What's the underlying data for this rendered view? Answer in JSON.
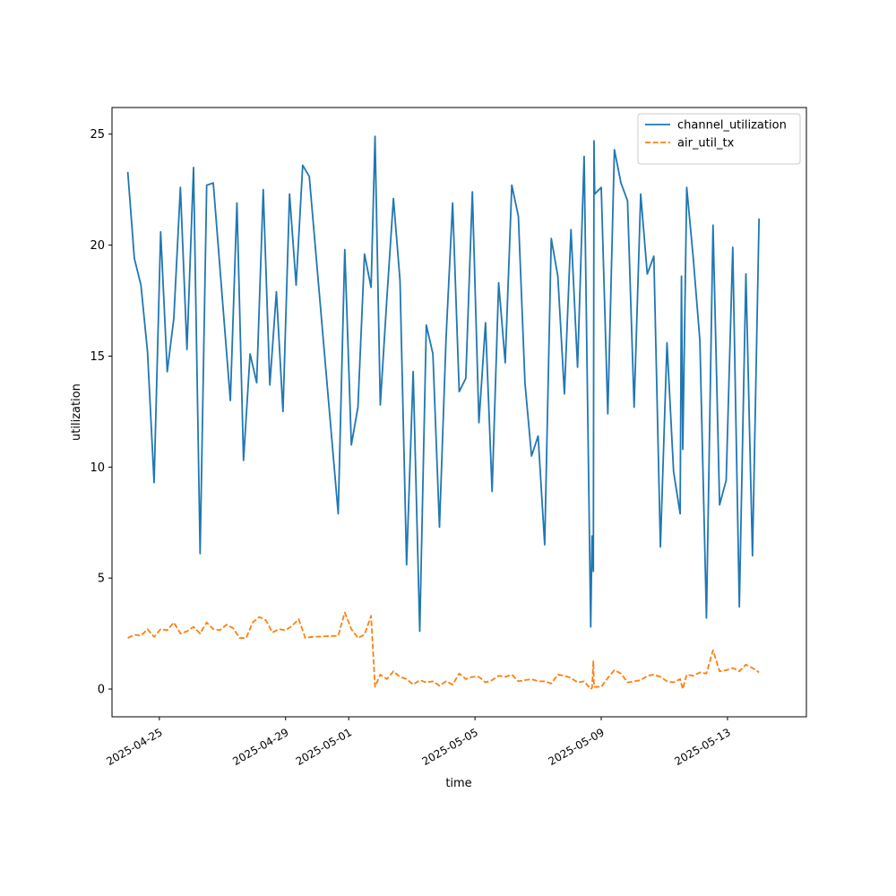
{
  "chart_data": {
    "type": "line",
    "title": "",
    "xlabel": "time",
    "ylabel": "utilization",
    "x_range": [
      "2025-04-23T12:00",
      "2025-05-15T12:00"
    ],
    "ylim": [
      -1.25,
      26.2
    ],
    "grid": false,
    "legend_position": "upper right",
    "x_ticks": [
      "2025-04-25",
      "2025-04-29",
      "2025-05-01",
      "2025-05-05",
      "2025-05-09",
      "2025-05-13"
    ],
    "y_ticks": [
      0,
      5,
      10,
      15,
      20,
      25
    ],
    "series": [
      {
        "name": "channel_utilization",
        "color": "#1f77b4",
        "dash": "solid",
        "points": [
          [
            "2025-04-24T00:00",
            23.3
          ],
          [
            "2025-04-24T05:00",
            19.4
          ],
          [
            "2025-04-24T10:00",
            18.2
          ],
          [
            "2025-04-24T15:00",
            15.2
          ],
          [
            "2025-04-24T20:00",
            9.3
          ],
          [
            "2025-04-25T01:00",
            20.6
          ],
          [
            "2025-04-25T06:00",
            14.3
          ],
          [
            "2025-04-25T11:00",
            16.7
          ],
          [
            "2025-04-25T16:00",
            22.6
          ],
          [
            "2025-04-25T21:00",
            15.3
          ],
          [
            "2025-04-26T02:00",
            23.5
          ],
          [
            "2025-04-26T07:00",
            6.1
          ],
          [
            "2025-04-26T12:00",
            22.7
          ],
          [
            "2025-04-26T17:00",
            22.8
          ],
          [
            "2025-04-27T06:00",
            13.0
          ],
          [
            "2025-04-27T11:00",
            21.9
          ],
          [
            "2025-04-27T16:00",
            10.3
          ],
          [
            "2025-04-27T21:00",
            15.1
          ],
          [
            "2025-04-28T02:00",
            13.8
          ],
          [
            "2025-04-28T07:00",
            22.5
          ],
          [
            "2025-04-28T12:00",
            13.7
          ],
          [
            "2025-04-28T17:00",
            17.9
          ],
          [
            "2025-04-28T22:00",
            12.5
          ],
          [
            "2025-04-29T03:00",
            22.3
          ],
          [
            "2025-04-29T08:00",
            18.2
          ],
          [
            "2025-04-29T13:00",
            23.6
          ],
          [
            "2025-04-29T18:00",
            23.1
          ],
          [
            "2025-04-30T16:00",
            7.9
          ],
          [
            "2025-04-30T21:00",
            19.8
          ],
          [
            "2025-05-01T02:00",
            11.0
          ],
          [
            "2025-05-01T07:00",
            12.7
          ],
          [
            "2025-05-01T12:00",
            19.6
          ],
          [
            "2025-05-01T17:00",
            18.1
          ],
          [
            "2025-05-01T20:00",
            24.9
          ],
          [
            "2025-05-02T00:00",
            12.8
          ],
          [
            "2025-05-02T05:00",
            17.6
          ],
          [
            "2025-05-02T10:00",
            22.1
          ],
          [
            "2025-05-02T15:00",
            18.4
          ],
          [
            "2025-05-02T20:00",
            5.6
          ],
          [
            "2025-05-03T01:00",
            14.3
          ],
          [
            "2025-05-03T06:00",
            2.6
          ],
          [
            "2025-05-03T11:00",
            16.4
          ],
          [
            "2025-05-03T16:00",
            15.1
          ],
          [
            "2025-05-03T21:00",
            7.3
          ],
          [
            "2025-05-04T02:00",
            15.8
          ],
          [
            "2025-05-04T07:00",
            21.9
          ],
          [
            "2025-05-04T12:00",
            13.4
          ],
          [
            "2025-05-04T17:00",
            14.0
          ],
          [
            "2025-05-04T22:00",
            22.4
          ],
          [
            "2025-05-05T03:00",
            12.0
          ],
          [
            "2025-05-05T08:00",
            16.5
          ],
          [
            "2025-05-05T13:00",
            8.9
          ],
          [
            "2025-05-05T18:00",
            18.3
          ],
          [
            "2025-05-05T23:00",
            14.7
          ],
          [
            "2025-05-06T04:00",
            22.7
          ],
          [
            "2025-05-06T09:00",
            21.3
          ],
          [
            "2025-05-06T14:00",
            13.8
          ],
          [
            "2025-05-06T19:00",
            10.5
          ],
          [
            "2025-05-07T00:00",
            11.4
          ],
          [
            "2025-05-07T05:00",
            6.5
          ],
          [
            "2025-05-07T10:00",
            20.3
          ],
          [
            "2025-05-07T15:00",
            18.6
          ],
          [
            "2025-05-07T20:00",
            13.3
          ],
          [
            "2025-05-08T01:00",
            20.7
          ],
          [
            "2025-05-08T06:00",
            14.5
          ],
          [
            "2025-05-08T11:00",
            24.0
          ],
          [
            "2025-05-08T16:00",
            2.8
          ],
          [
            "2025-05-08T17:00",
            6.9
          ],
          [
            "2025-05-08T18:00",
            5.3
          ],
          [
            "2025-05-08T18:30",
            24.7
          ],
          [
            "2025-05-08T19:00",
            22.3
          ],
          [
            "2025-05-09T00:00",
            22.6
          ],
          [
            "2025-05-09T05:00",
            12.4
          ],
          [
            "2025-05-09T10:00",
            24.3
          ],
          [
            "2025-05-09T15:00",
            22.8
          ],
          [
            "2025-05-09T20:00",
            22.0
          ],
          [
            "2025-05-10T01:00",
            12.7
          ],
          [
            "2025-05-10T06:00",
            22.3
          ],
          [
            "2025-05-10T11:00",
            18.7
          ],
          [
            "2025-05-10T16:00",
            19.5
          ],
          [
            "2025-05-10T21:00",
            6.4
          ],
          [
            "2025-05-11T02:00",
            15.6
          ],
          [
            "2025-05-11T07:00",
            9.8
          ],
          [
            "2025-05-11T12:00",
            7.9
          ],
          [
            "2025-05-11T13:00",
            18.6
          ],
          [
            "2025-05-11T14:00",
            10.8
          ],
          [
            "2025-05-11T17:00",
            22.6
          ],
          [
            "2025-05-11T22:00",
            19.4
          ],
          [
            "2025-05-12T03:00",
            15.7
          ],
          [
            "2025-05-12T08:00",
            3.2
          ],
          [
            "2025-05-12T13:00",
            20.9
          ],
          [
            "2025-05-12T18:00",
            8.3
          ],
          [
            "2025-05-12T23:00",
            9.4
          ],
          [
            "2025-05-13T04:00",
            19.9
          ],
          [
            "2025-05-13T09:00",
            3.7
          ],
          [
            "2025-05-13T14:00",
            18.7
          ],
          [
            "2025-05-13T19:00",
            6.0
          ],
          [
            "2025-05-14T00:00",
            21.2
          ]
        ]
      },
      {
        "name": "air_util_tx",
        "color": "#ff7f0e",
        "dash": "dashed",
        "points": [
          [
            "2025-04-24T00:00",
            2.3
          ],
          [
            "2025-04-24T05:00",
            2.45
          ],
          [
            "2025-04-24T10:00",
            2.4
          ],
          [
            "2025-04-24T15:00",
            2.7
          ],
          [
            "2025-04-24T20:00",
            2.35
          ],
          [
            "2025-04-25T01:00",
            2.7
          ],
          [
            "2025-04-25T06:00",
            2.65
          ],
          [
            "2025-04-25T11:00",
            3.0
          ],
          [
            "2025-04-25T16:00",
            2.5
          ],
          [
            "2025-04-25T21:00",
            2.6
          ],
          [
            "2025-04-26T02:00",
            2.8
          ],
          [
            "2025-04-26T07:00",
            2.5
          ],
          [
            "2025-04-26T12:00",
            3.0
          ],
          [
            "2025-04-26T17:00",
            2.7
          ],
          [
            "2025-04-26T22:00",
            2.65
          ],
          [
            "2025-04-27T03:00",
            2.9
          ],
          [
            "2025-04-27T08:00",
            2.75
          ],
          [
            "2025-04-27T13:00",
            2.3
          ],
          [
            "2025-04-27T18:00",
            2.3
          ],
          [
            "2025-04-27T23:00",
            3.0
          ],
          [
            "2025-04-28T04:00",
            3.25
          ],
          [
            "2025-04-28T09:00",
            3.1
          ],
          [
            "2025-04-28T14:00",
            2.55
          ],
          [
            "2025-04-28T19:00",
            2.7
          ],
          [
            "2025-04-29T00:00",
            2.65
          ],
          [
            "2025-04-29T05:00",
            2.85
          ],
          [
            "2025-04-29T10:00",
            3.15
          ],
          [
            "2025-04-29T15:00",
            2.3
          ],
          [
            "2025-04-29T20:00",
            2.35
          ],
          [
            "2025-04-30T16:00",
            2.4
          ],
          [
            "2025-04-30T21:00",
            3.45
          ],
          [
            "2025-05-01T02:00",
            2.7
          ],
          [
            "2025-05-01T07:00",
            2.3
          ],
          [
            "2025-05-01T12:00",
            2.45
          ],
          [
            "2025-05-01T17:00",
            3.3
          ],
          [
            "2025-05-01T20:00",
            0.1
          ],
          [
            "2025-05-02T00:00",
            0.65
          ],
          [
            "2025-05-02T05:00",
            0.45
          ],
          [
            "2025-05-02T10:00",
            0.8
          ],
          [
            "2025-05-02T15:00",
            0.55
          ],
          [
            "2025-05-02T20:00",
            0.45
          ],
          [
            "2025-05-03T01:00",
            0.2
          ],
          [
            "2025-05-03T06:00",
            0.4
          ],
          [
            "2025-05-03T11:00",
            0.3
          ],
          [
            "2025-05-03T16:00",
            0.35
          ],
          [
            "2025-05-03T21:00",
            0.15
          ],
          [
            "2025-05-04T02:00",
            0.35
          ],
          [
            "2025-05-04T07:00",
            0.2
          ],
          [
            "2025-05-04T12:00",
            0.7
          ],
          [
            "2025-05-04T17:00",
            0.45
          ],
          [
            "2025-05-04T22:00",
            0.55
          ],
          [
            "2025-05-05T03:00",
            0.55
          ],
          [
            "2025-05-05T08:00",
            0.3
          ],
          [
            "2025-05-05T13:00",
            0.4
          ],
          [
            "2025-05-05T18:00",
            0.6
          ],
          [
            "2025-05-05T23:00",
            0.55
          ],
          [
            "2025-05-06T04:00",
            0.65
          ],
          [
            "2025-05-06T09:00",
            0.35
          ],
          [
            "2025-05-06T14:00",
            0.4
          ],
          [
            "2025-05-06T19:00",
            0.45
          ],
          [
            "2025-05-07T00:00",
            0.35
          ],
          [
            "2025-05-07T05:00",
            0.35
          ],
          [
            "2025-05-07T10:00",
            0.25
          ],
          [
            "2025-05-07T15:00",
            0.65
          ],
          [
            "2025-05-07T20:00",
            0.6
          ],
          [
            "2025-05-08T01:00",
            0.5
          ],
          [
            "2025-05-08T06:00",
            0.3
          ],
          [
            "2025-05-08T11:00",
            0.35
          ],
          [
            "2025-05-08T16:00",
            0.0
          ],
          [
            "2025-05-08T17:00",
            0.05
          ],
          [
            "2025-05-08T18:00",
            1.25
          ],
          [
            "2025-05-08T18:30",
            0.1
          ],
          [
            "2025-05-09T00:00",
            0.1
          ],
          [
            "2025-05-09T05:00",
            0.5
          ],
          [
            "2025-05-09T10:00",
            0.85
          ],
          [
            "2025-05-09T15:00",
            0.7
          ],
          [
            "2025-05-09T20:00",
            0.3
          ],
          [
            "2025-05-10T01:00",
            0.35
          ],
          [
            "2025-05-10T06:00",
            0.4
          ],
          [
            "2025-05-10T11:00",
            0.6
          ],
          [
            "2025-05-10T16:00",
            0.65
          ],
          [
            "2025-05-10T21:00",
            0.55
          ],
          [
            "2025-05-11T02:00",
            0.35
          ],
          [
            "2025-05-11T07:00",
            0.3
          ],
          [
            "2025-05-11T12:00",
            0.45
          ],
          [
            "2025-05-11T14:00",
            0.0
          ],
          [
            "2025-05-11T17:00",
            0.65
          ],
          [
            "2025-05-11T22:00",
            0.6
          ],
          [
            "2025-05-12T03:00",
            0.75
          ],
          [
            "2025-05-12T08:00",
            0.7
          ],
          [
            "2025-05-12T13:00",
            1.75
          ],
          [
            "2025-05-12T18:00",
            0.8
          ],
          [
            "2025-05-12T23:00",
            0.85
          ],
          [
            "2025-05-13T04:00",
            0.95
          ],
          [
            "2025-05-13T09:00",
            0.8
          ],
          [
            "2025-05-13T14:00",
            1.1
          ],
          [
            "2025-05-13T19:00",
            0.95
          ],
          [
            "2025-05-14T00:00",
            0.75
          ]
        ]
      }
    ]
  }
}
